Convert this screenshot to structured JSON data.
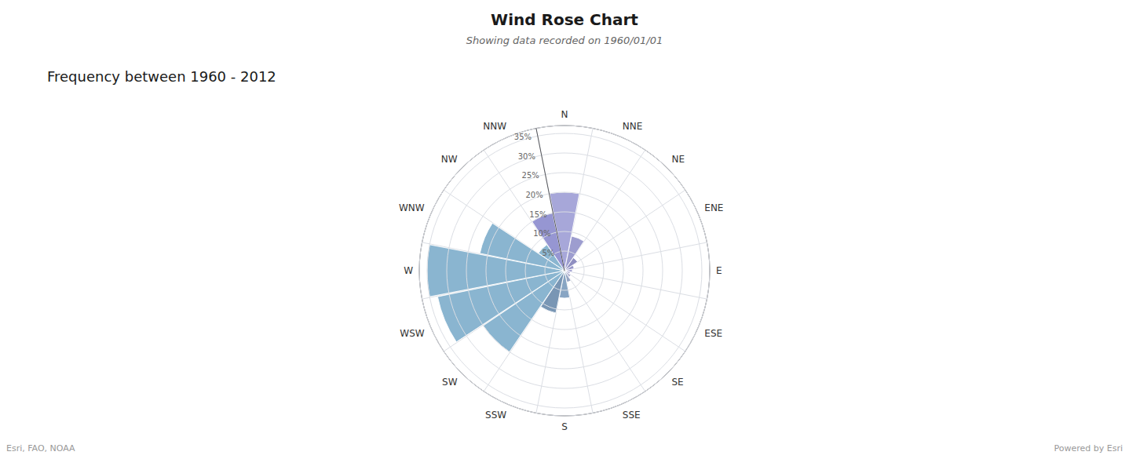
{
  "chart_data": {
    "type": "rose",
    "title": "Wind Rose Chart",
    "subtitle": "Showing data recorded on 1960/01/01",
    "annotations": [
      "Frequency between 1960 - 2012",
      "Esri, FAO, NOAA",
      "Powered by Esri"
    ],
    "categories": [
      "N",
      "NNE",
      "NE",
      "ENE",
      "E",
      "ESE",
      "SE",
      "SSE",
      "S",
      "SSW",
      "SW",
      "WSW",
      "W",
      "WNW",
      "NW",
      "NNW"
    ],
    "values": [
      20,
      9,
      4,
      2.5,
      2,
      1.5,
      2,
      3,
      7,
      11,
      25,
      33,
      35,
      22,
      8,
      15
    ],
    "colors": [
      "#9b9bd4",
      "#9090c8",
      "#8080b8",
      "#8888c0",
      "#9999cc",
      "#9999cc",
      "#aaaacc",
      "#8899bb",
      "#7799bb",
      "#6688aa",
      "#7aabca",
      "#7aabca",
      "#7aabca",
      "#7aabca",
      "#7aabca",
      "#8888cc"
    ],
    "ylim": [
      0,
      37
    ],
    "yticks": [
      {
        "value": 5,
        "label": "5%"
      },
      {
        "value": 10,
        "label": "10%"
      },
      {
        "value": 15,
        "label": "15%"
      },
      {
        "value": 20,
        "label": "20%"
      },
      {
        "value": 25,
        "label": "25%"
      },
      {
        "value": 30,
        "label": "30%"
      },
      {
        "value": 35,
        "label": "35%"
      }
    ],
    "grid": true
  }
}
